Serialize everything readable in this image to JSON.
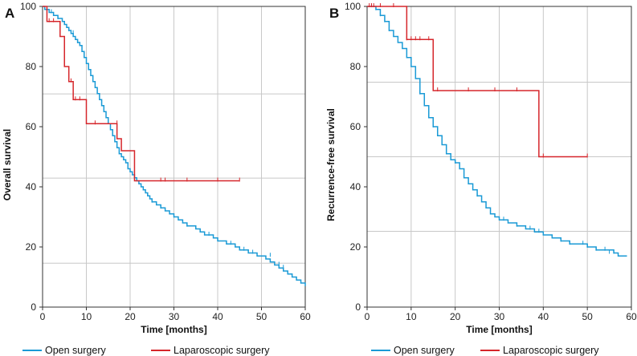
{
  "chart_data": [
    {
      "type": "line",
      "panel_label": "A",
      "xlabel": "Time [months]",
      "ylabel": "Overall survival",
      "xlim": [
        0,
        60
      ],
      "ylim": [
        0,
        100
      ],
      "xticks": [
        0,
        10,
        20,
        30,
        40,
        50,
        60
      ],
      "yticks": [
        0,
        20,
        40,
        60,
        80,
        100
      ],
      "grid": true,
      "legend_position": "bottom",
      "series": [
        {
          "name": "Open surgery",
          "color": "#1a9ad6",
          "step": true,
          "x": [
            0,
            0.5,
            1,
            1.5,
            2,
            2.5,
            3,
            3.5,
            4,
            4.5,
            5,
            5.5,
            6,
            6.5,
            7,
            7.5,
            8,
            8.5,
            9,
            9.5,
            10,
            10.5,
            11,
            11.5,
            12,
            12.5,
            13,
            13.5,
            14,
            14.5,
            15,
            15.5,
            16,
            16.5,
            17,
            17.5,
            18,
            18.5,
            19,
            19.5,
            20,
            20.5,
            21,
            21.5,
            22,
            22.5,
            23,
            23.5,
            24,
            24.5,
            25,
            26,
            27,
            28,
            29,
            30,
            31,
            32,
            33,
            34,
            35,
            36,
            37,
            38,
            39,
            40,
            41,
            42,
            43,
            44,
            45,
            46,
            47,
            48,
            49,
            50,
            51,
            52,
            53,
            54,
            55,
            56,
            57,
            58,
            59,
            60
          ],
          "y": [
            100,
            99,
            99,
            98,
            98,
            97,
            97,
            96,
            96,
            95,
            94,
            93,
            92,
            91,
            90,
            89,
            88,
            87,
            85,
            83,
            81,
            79,
            77,
            75,
            73,
            71,
            69,
            67,
            65,
            63,
            61,
            59,
            57,
            55,
            53,
            51,
            50,
            49,
            48,
            46,
            45,
            44,
            43,
            42,
            41,
            40,
            39,
            38,
            37,
            36,
            35,
            34,
            33,
            32,
            31,
            30,
            29,
            28,
            27,
            27,
            26,
            25,
            24,
            24,
            23,
            22,
            22,
            21,
            21,
            20,
            19,
            19,
            18,
            18,
            17,
            17,
            16,
            15,
            14,
            13,
            12,
            11,
            10,
            9,
            8,
            7
          ],
          "censor_x": [
            2,
            3.5,
            6,
            7,
            8,
            25,
            27,
            30,
            33,
            38,
            43,
            46,
            48,
            52,
            54,
            55
          ],
          "censor_y": [
            98,
            96,
            92,
            91,
            88,
            35,
            33,
            30,
            27,
            24,
            21,
            19,
            18,
            17,
            14,
            13
          ]
        },
        {
          "name": "Laparoscopic surgery",
          "color": "#d6262b",
          "step": true,
          "x": [
            0,
            1,
            3,
            4,
            5,
            6,
            7,
            10,
            16,
            17,
            18,
            21,
            45
          ],
          "y": [
            100,
            95,
            95,
            90,
            80,
            75,
            69,
            61,
            61,
            56,
            52,
            42,
            42
          ],
          "censor_x": [
            1.5,
            2.5,
            6.5,
            7.5,
            8.5,
            12,
            17,
            27,
            28,
            33,
            40,
            45
          ],
          "censor_y": [
            95,
            95,
            75,
            69,
            69,
            61,
            61,
            42,
            42,
            42,
            42,
            42
          ]
        }
      ],
      "reference_lines_y": [
        70.9,
        42.9,
        14.6
      ]
    },
    {
      "type": "line",
      "panel_label": "B",
      "xlabel": "Time [months]",
      "ylabel": "Recurrence-free survival",
      "xlim": [
        0,
        60
      ],
      "ylim": [
        0,
        100
      ],
      "xticks": [
        0,
        10,
        20,
        30,
        40,
        50,
        60
      ],
      "yticks": [
        0,
        20,
        40,
        60,
        80,
        100
      ],
      "grid": true,
      "legend_position": "bottom",
      "series": [
        {
          "name": "Open surgery",
          "color": "#1a9ad6",
          "step": true,
          "x": [
            0,
            1,
            2,
            3,
            4,
            5,
            6,
            7,
            8,
            9,
            10,
            11,
            12,
            13,
            14,
            15,
            16,
            17,
            18,
            19,
            20,
            21,
            22,
            23,
            24,
            25,
            26,
            27,
            28,
            29,
            30,
            32,
            34,
            36,
            38,
            40,
            42,
            44,
            46,
            48,
            50,
            52,
            54,
            56,
            57,
            58,
            59
          ],
          "y": [
            100,
            100,
            99,
            97,
            95,
            92,
            90,
            88,
            86,
            83,
            80,
            76,
            71,
            67,
            63,
            60,
            57,
            54,
            51,
            49,
            48,
            46,
            43,
            41,
            39,
            37,
            35,
            33,
            31,
            30,
            29,
            28,
            27,
            26,
            25,
            24,
            23,
            22,
            21,
            21,
            20,
            19,
            19,
            18,
            17,
            17,
            17
          ],
          "censor_x": [
            1,
            2,
            3,
            4,
            5,
            12,
            15,
            20,
            25,
            31,
            34,
            37,
            39,
            44,
            46,
            49,
            50,
            52,
            54,
            55,
            56
          ],
          "censor_y": [
            100,
            99,
            97,
            95,
            92,
            71,
            60,
            48,
            37,
            29,
            27,
            26,
            25,
            22,
            21,
            21,
            20,
            19,
            19,
            18,
            18
          ]
        },
        {
          "name": "Laparoscopic surgery",
          "color": "#d6262b",
          "step": true,
          "x": [
            0,
            9,
            15,
            39,
            50
          ],
          "y": [
            100,
            89,
            72,
            50,
            50
          ],
          "censor_x": [
            0.5,
            1,
            1.5,
            3,
            6,
            9,
            10,
            11,
            12,
            14,
            16,
            23,
            29,
            34,
            40,
            50
          ],
          "censor_y": [
            100,
            100,
            100,
            100,
            100,
            89,
            89,
            89,
            89,
            89,
            72,
            72,
            72,
            72,
            50,
            50
          ]
        }
      ],
      "reference_lines_y": [
        74.8,
        50.0,
        25.2
      ]
    }
  ]
}
